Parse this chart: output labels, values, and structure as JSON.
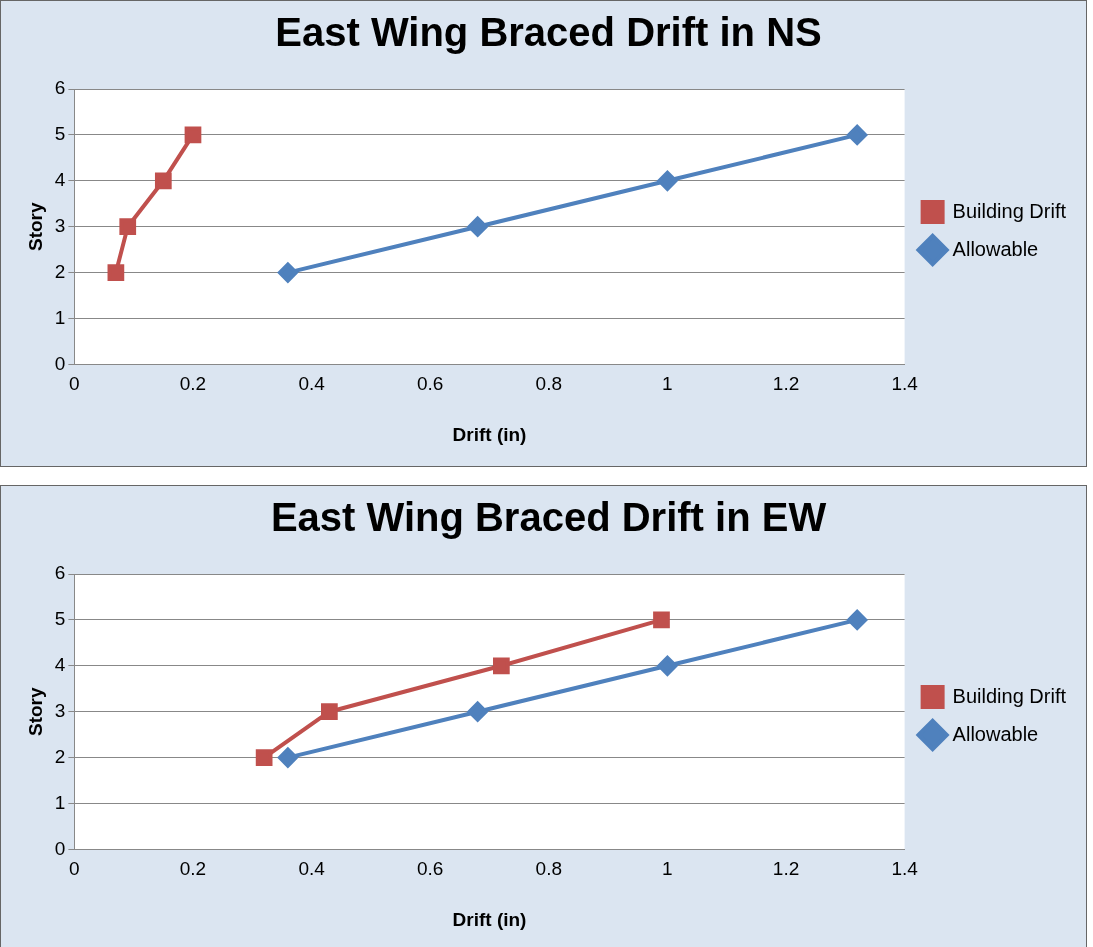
{
  "chart_data": [
    {
      "type": "line",
      "title": "East Wing Braced Drift in NS",
      "xlabel": "Drift (in)",
      "ylabel": "Story",
      "xlim": [
        0,
        1.4
      ],
      "xticks": [
        0,
        0.2,
        0.4,
        0.6,
        0.8,
        1,
        1.2,
        1.4
      ],
      "ylim": [
        0,
        6
      ],
      "yticks": [
        0,
        1,
        2,
        3,
        4,
        5,
        6
      ],
      "grid": "y",
      "legend": "right",
      "series": [
        {
          "name": "Building Drift",
          "color": "#c0504d",
          "marker": "square",
          "x": [
            0.07,
            0.09,
            0.15,
            0.2
          ],
          "values": [
            2,
            3,
            4,
            5
          ]
        },
        {
          "name": "Allowable",
          "color": "#4f81bd",
          "marker": "diamond",
          "x": [
            0.36,
            0.68,
            1,
            1.32
          ],
          "values": [
            2,
            3,
            4,
            5
          ]
        }
      ]
    },
    {
      "type": "line",
      "title": "East Wing Braced Drift in EW",
      "xlabel": "Drift (in)",
      "ylabel": "Story",
      "xlim": [
        0,
        1.4
      ],
      "xticks": [
        0,
        0.2,
        0.4,
        0.6,
        0.8,
        1,
        1.2,
        1.4
      ],
      "ylim": [
        0,
        6
      ],
      "yticks": [
        0,
        1,
        2,
        3,
        4,
        5,
        6
      ],
      "grid": "y",
      "legend": "right",
      "series": [
        {
          "name": "Building Drift",
          "color": "#c0504d",
          "marker": "square",
          "x": [
            0.32,
            0.43,
            0.72,
            0.99
          ],
          "values": [
            2,
            3,
            4,
            5
          ]
        },
        {
          "name": "Allowable",
          "color": "#4f81bd",
          "marker": "diamond",
          "x": [
            0.36,
            0.68,
            1,
            1.32
          ],
          "values": [
            2,
            3,
            4,
            5
          ]
        }
      ]
    }
  ]
}
